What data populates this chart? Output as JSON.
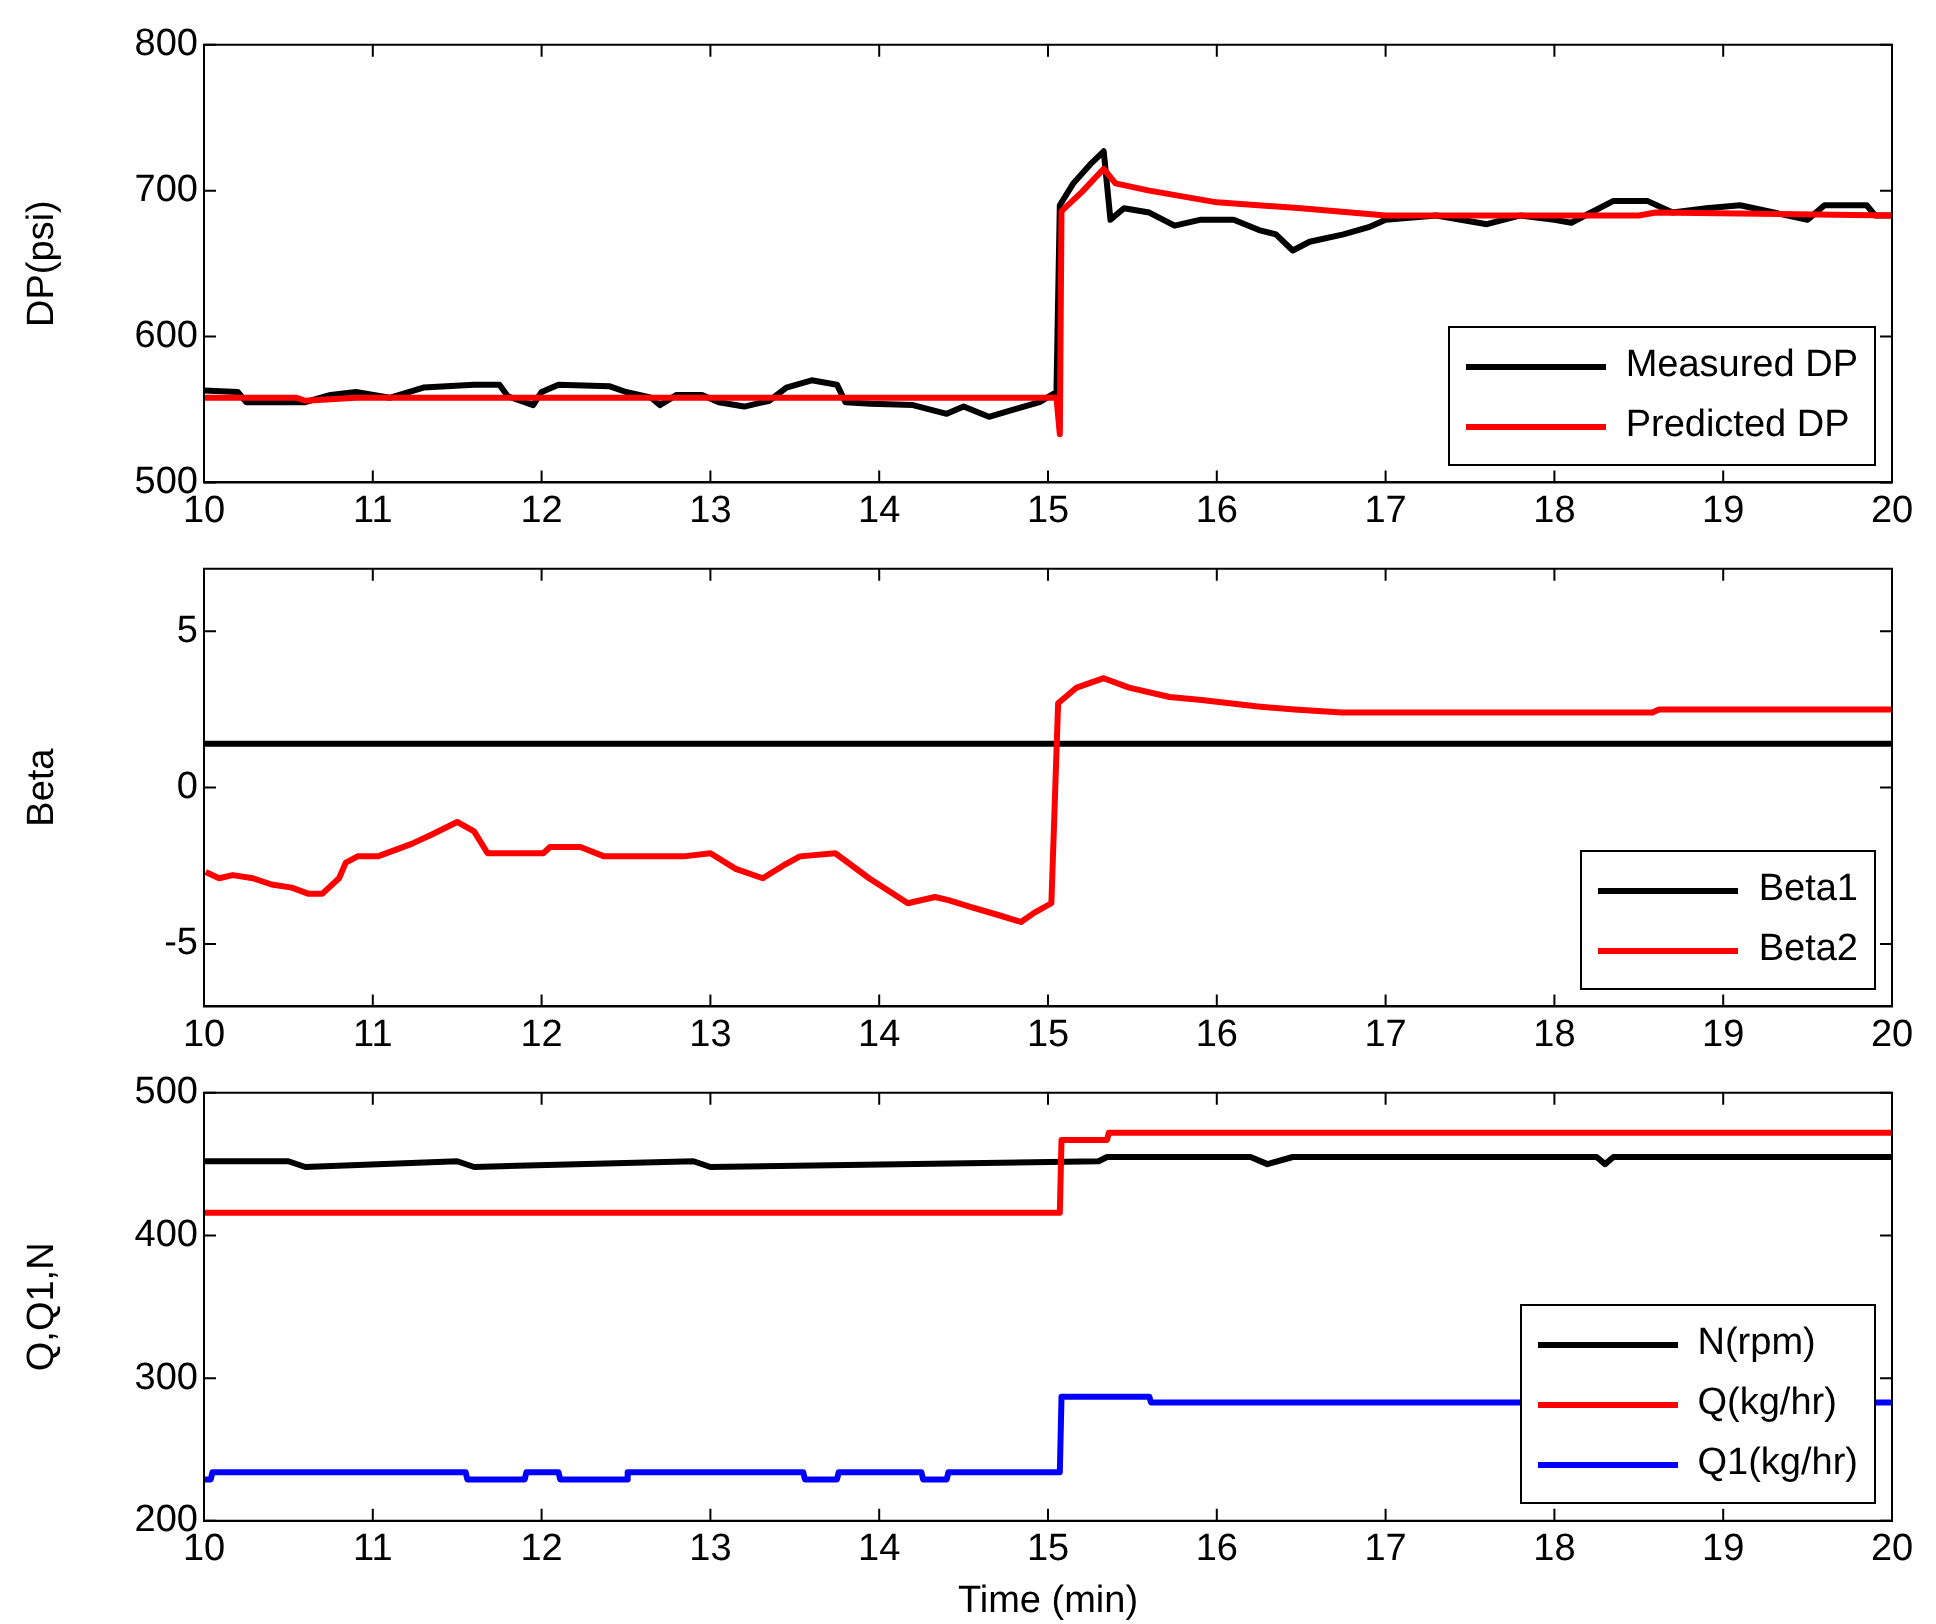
{
  "chart_data": [
    {
      "type": "line",
      "ylabel": "DP(psi)",
      "xlim": [
        10,
        20
      ],
      "xticks": [
        10,
        11,
        12,
        13,
        14,
        15,
        16,
        17,
        18,
        19,
        20
      ],
      "ylim": [
        500,
        800
      ],
      "yticks": [
        500,
        600,
        700,
        800
      ],
      "grid": false,
      "legend": "bottom right",
      "marker": "none",
      "line_style": "solid",
      "series": [
        {
          "name": "Measured DP",
          "color": "#000000",
          "x": [
            10,
            10.2,
            10.25,
            10.6,
            10.75,
            10.9,
            11.1,
            11.3,
            11.6,
            11.75,
            11.8,
            11.95,
            12,
            12.1,
            12.4,
            12.5,
            12.65,
            12.7,
            12.8,
            12.95,
            13.05,
            13.2,
            13.35,
            13.45,
            13.6,
            13.75,
            13.8,
            13.95,
            14.2,
            14.4,
            14.5,
            14.65,
            14.8,
            14.95,
            15.05,
            15.07,
            15.15,
            15.25,
            15.33,
            15.37,
            15.45,
            15.6,
            15.75,
            15.9,
            16.1,
            16.25,
            16.35,
            16.45,
            16.55,
            16.75,
            16.9,
            17,
            17.3,
            17.6,
            17.8,
            18,
            18.1,
            18.2,
            18.35,
            18.55,
            18.7,
            18.9,
            19.1,
            19.3,
            19.5,
            19.6,
            19.85,
            19.9,
            20
          ],
          "values": [
            563,
            562,
            555,
            555,
            560,
            562,
            558,
            565,
            567,
            567,
            559,
            553,
            562,
            567,
            566,
            562,
            558,
            553,
            560,
            560,
            555,
            552,
            556,
            565,
            570,
            567,
            555,
            554,
            553,
            547,
            552,
            545,
            550,
            555,
            562,
            690,
            705,
            718,
            727,
            680,
            688,
            685,
            676,
            680,
            680,
            673,
            670,
            659,
            665,
            670,
            675,
            680,
            683,
            677,
            683,
            680,
            678,
            684,
            693,
            693,
            685,
            688,
            690,
            685,
            680,
            690,
            690,
            683,
            683
          ]
        },
        {
          "name": "Predicted DP",
          "color": "#ff0000",
          "x": [
            10,
            10.55,
            10.6,
            10.9,
            15.05,
            15.07,
            15.08,
            15.2,
            15.33,
            15.4,
            15.6,
            16,
            16.5,
            17,
            18.5,
            18.6,
            20
          ],
          "values": [
            558,
            558,
            556,
            558,
            558,
            533,
            686,
            699,
            715,
            705,
            700,
            692,
            688,
            683,
            683,
            685,
            683
          ]
        }
      ]
    },
    {
      "type": "line",
      "ylabel": "Beta",
      "xlim": [
        10,
        20
      ],
      "xticks": [
        10,
        11,
        12,
        13,
        14,
        15,
        16,
        17,
        18,
        19,
        20
      ],
      "ylim": [
        -7,
        7
      ],
      "yticks": [
        -5,
        0,
        5
      ],
      "grid": false,
      "legend": "bottom right",
      "marker": "none",
      "line_style": "solid",
      "series": [
        {
          "name": "Beta1",
          "color": "#000000",
          "x": [
            10,
            20
          ],
          "values": [
            1.4,
            1.4
          ]
        },
        {
          "name": "Beta2",
          "color": "#ff0000",
          "x": [
            10.01,
            10.09,
            10.17,
            10.29,
            10.4,
            10.52,
            10.62,
            10.7,
            10.8,
            10.84,
            10.91,
            11.03,
            11.23,
            11.35,
            11.5,
            11.6,
            11.68,
            12.01,
            12.05,
            12.23,
            12.37,
            12.84,
            13,
            13.15,
            13.31,
            13.43,
            13.53,
            13.74,
            13.94,
            14.17,
            14.33,
            14.41,
            14.53,
            14.72,
            14.84,
            14.92,
            15.02,
            15.06,
            15.17,
            15.33,
            15.48,
            15.72,
            15.91,
            16.23,
            16.46,
            16.74,
            18.58,
            18.62,
            20
          ],
          "values": [
            -2.7,
            -2.9,
            -2.8,
            -2.9,
            -3.1,
            -3.2,
            -3.4,
            -3.4,
            -2.9,
            -2.4,
            -2.2,
            -2.2,
            -1.8,
            -1.5,
            -1.1,
            -1.4,
            -2.1,
            -2.1,
            -1.9,
            -1.9,
            -2.2,
            -2.2,
            -2.1,
            -2.6,
            -2.9,
            -2.5,
            -2.2,
            -2.1,
            -2.9,
            -3.7,
            -3.5,
            -3.6,
            -3.8,
            -4.1,
            -4.3,
            -4,
            -3.7,
            2.7,
            3.2,
            3.5,
            3.2,
            2.9,
            2.8,
            2.6,
            2.5,
            2.4,
            2.4,
            2.5,
            2.5
          ]
        }
      ]
    },
    {
      "type": "line",
      "ylabel": "Q,Q1,N",
      "xlabel": "Time (min)",
      "xlim": [
        10,
        20
      ],
      "xticks": [
        10,
        11,
        12,
        13,
        14,
        15,
        16,
        17,
        18,
        19,
        20
      ],
      "ylim": [
        200,
        500
      ],
      "yticks": [
        200,
        300,
        400,
        500
      ],
      "grid": false,
      "legend": "bottom right",
      "marker": "none",
      "line_style": "solid",
      "series": [
        {
          "name": "N(rpm)",
          "color": "#000000",
          "x": [
            10,
            10.5,
            10.6,
            11.5,
            11.6,
            12.9,
            13,
            15.3,
            15.35,
            16.2,
            16.3,
            16.45,
            18.25,
            18.3,
            18.35,
            20
          ],
          "values": [
            452,
            452,
            448,
            452,
            448,
            452,
            448,
            452,
            455,
            455,
            450,
            455,
            455,
            450,
            455,
            455
          ]
        },
        {
          "name": "Q(kg/hr)",
          "color": "#ff0000",
          "x": [
            10,
            15.07,
            15.08,
            15.35,
            15.36,
            20
          ],
          "values": [
            416,
            416,
            467,
            467,
            472,
            472
          ]
        },
        {
          "name": "Q1(kg/hr)",
          "color": "#0000ff",
          "x": [
            10,
            10.04,
            10.05,
            11.55,
            11.56,
            11.9,
            11.91,
            12.1,
            12.11,
            12.5,
            12.51,
            13.55,
            13.56,
            13.75,
            13.76,
            14.25,
            14.26,
            14.4,
            14.41,
            15.07,
            15.08,
            15.6,
            15.61,
            20
          ],
          "values": [
            229,
            229,
            234,
            234,
            229,
            229,
            234,
            234,
            229,
            229,
            234,
            234,
            229,
            229,
            234,
            234,
            229,
            229,
            234,
            234,
            287,
            287,
            283,
            283
          ]
        }
      ]
    }
  ]
}
